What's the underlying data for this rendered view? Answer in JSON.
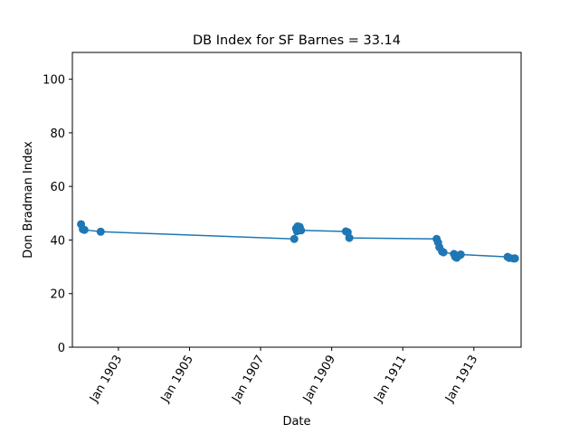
{
  "chart_data": {
    "type": "line",
    "title": "DB Index for SF Barnes = 33.14",
    "xlabel": "Date",
    "ylabel": "Don Bradman Index",
    "x_tick_labels": [
      "Jan 1903",
      "Jan 1905",
      "Jan 1907",
      "Jan 1909",
      "Jan 1911",
      "Jan 1913"
    ],
    "y_tick_labels": [
      "0",
      "20",
      "40",
      "60",
      "80",
      "100"
    ],
    "ylim": [
      0,
      110
    ],
    "xlim": [
      "1901-09-15",
      "1914-05-01"
    ],
    "grid": false,
    "legend": "none",
    "line_color": "#1f77b4",
    "series": [
      {
        "x": [
          "1901-12-13",
          "1902-01-01",
          "1902-01-17",
          "1902-07-03",
          "1907-12-13",
          "1908-01-01",
          "1908-01-10",
          "1908-01-17",
          "1908-02-07",
          "1908-02-21",
          "1909-05-27",
          "1909-06-14",
          "1909-07-01",
          "1911-12-15",
          "1911-12-30",
          "1912-01-12",
          "1912-02-09",
          "1912-02-23",
          "1912-06-10",
          "1912-06-24",
          "1912-07-08",
          "1912-07-22",
          "1912-08-12",
          "1912-08-19",
          "1913-12-13",
          "1914-01-01",
          "1914-02-14",
          "1914-02-27"
        ],
        "y": [
          45.9,
          44.0,
          43.8,
          43.1,
          40.4,
          44.3,
          43.3,
          45.1,
          44.9,
          43.6,
          43.2,
          42.9,
          40.8,
          40.4,
          39.1,
          37.3,
          35.7,
          35.4,
          34.8,
          33.7,
          33.4,
          34.1,
          34.4,
          34.6,
          33.7,
          33.3,
          33.1,
          33.14
        ]
      }
    ]
  }
}
